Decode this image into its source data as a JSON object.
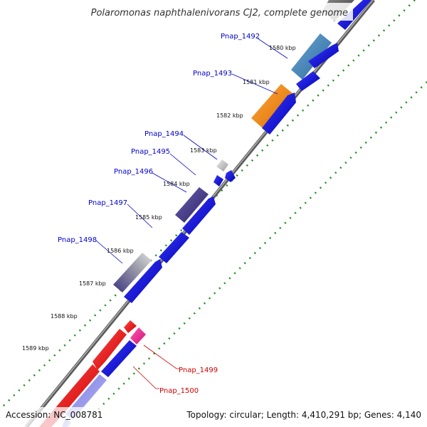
{
  "title": "Polaromonas naphthalenivorans CJ2, complete genome",
  "footer": {
    "accession": "Accession: NC_008781",
    "summary": "Topology: circular; Length: 4,410,291 bp; Genes: 4,140"
  },
  "colors": {
    "backbone": "#8a8a8a",
    "tick_dots": "#1e8c1e",
    "forward_strand_label": "#0000cc",
    "reverse_strand_label": "#cc0000",
    "gene_blue": "#0000ee",
    "gene_red": "#ff0000",
    "gene_magenta": "#ff1493",
    "gene_orange": "#ff8c00",
    "gene_steel": "#4682b4",
    "gene_gray": "#bdbdbd",
    "gene_darkgray": "#555555",
    "gene_slate": "#483d8b"
  },
  "kbp_ticks": [
    "1580 kbp",
    "1581 kbp",
    "1582 kbp",
    "1583 kbp",
    "1584 kbp",
    "1585 kbp",
    "1586 kbp",
    "1587 kbp",
    "1588 kbp",
    "1589 kbp"
  ],
  "gene_labels": [
    {
      "name": "Pnap_1492",
      "strand": "forward"
    },
    {
      "name": "Pnap_1493",
      "strand": "forward"
    },
    {
      "name": "Pnap_1494",
      "strand": "forward"
    },
    {
      "name": "Pnap_1495",
      "strand": "forward"
    },
    {
      "name": "Pnap_1496",
      "strand": "forward"
    },
    {
      "name": "Pnap_1497",
      "strand": "forward"
    },
    {
      "name": "Pnap_1498",
      "strand": "forward"
    },
    {
      "name": "Pnap_1499",
      "strand": "reverse"
    },
    {
      "name": "Pnap_1500",
      "strand": "reverse"
    }
  ]
}
